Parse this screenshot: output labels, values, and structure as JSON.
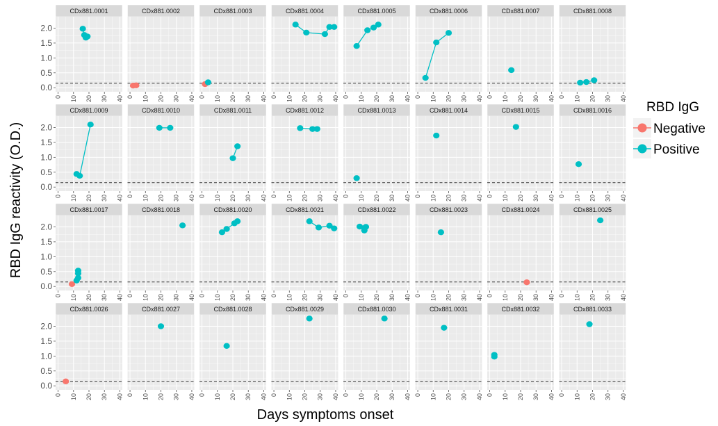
{
  "chart_data": {
    "type": "scatter",
    "facet_layout": "4 rows x 8 columns",
    "xlabel": "Days symptoms onset",
    "ylabel": "RBD IgG reactivity (O.D.)",
    "xlim": [
      0,
      40
    ],
    "ylim": [
      0,
      2.25
    ],
    "x_ticks": [
      0,
      10,
      20,
      30,
      40
    ],
    "y_ticks": [
      0.0,
      0.5,
      1.0,
      1.5,
      2.0
    ],
    "y_tick_labels": [
      "0.0",
      "0.5",
      "1.0",
      "1.5",
      "2.0"
    ],
    "threshold_line": 0.15,
    "grid": true,
    "lines_connect_points": true,
    "legend": {
      "title": "RBD IgG",
      "placement": "right",
      "entries": [
        {
          "label": "Negative",
          "color": "#F8766D"
        },
        {
          "label": "Positive",
          "color": "#00BFC4"
        }
      ]
    },
    "colors": {
      "Negative": "#F8766D",
      "Positive": "#00BFC4",
      "panel_bg": "#EBEBEB",
      "strip_bg": "#D9D9D9",
      "grid": "#FFFFFF",
      "threshold": "#333333"
    },
    "panels": [
      {
        "id": "CDx881.0001",
        "points": [
          [
            16,
            1.98,
            "Positive"
          ],
          [
            17,
            1.77,
            "Positive"
          ],
          [
            18,
            1.68,
            "Positive"
          ],
          [
            19,
            1.72,
            "Positive"
          ]
        ]
      },
      {
        "id": "CDx881.0002",
        "points": [
          [
            2,
            0.07,
            "Negative"
          ],
          [
            4,
            0.08,
            "Negative"
          ]
        ]
      },
      {
        "id": "CDx881.0003",
        "points": [
          [
            2,
            0.12,
            "Negative"
          ],
          [
            4,
            0.18,
            "Positive"
          ]
        ]
      },
      {
        "id": "CDx881.0004",
        "points": [
          [
            14,
            2.12,
            "Positive"
          ],
          [
            21,
            1.85,
            "Positive"
          ],
          [
            33,
            1.8,
            "Positive"
          ],
          [
            36,
            2.04,
            "Positive"
          ],
          [
            39,
            2.04,
            "Positive"
          ]
        ]
      },
      {
        "id": "CDx881.0005",
        "points": [
          [
            7,
            1.4,
            "Positive"
          ],
          [
            14,
            1.93,
            "Positive"
          ],
          [
            18,
            2.02,
            "Positive"
          ],
          [
            21,
            2.12,
            "Positive"
          ]
        ]
      },
      {
        "id": "CDx881.0006",
        "points": [
          [
            5,
            0.33,
            "Positive"
          ],
          [
            12,
            1.52,
            "Positive"
          ],
          [
            20,
            1.84,
            "Positive"
          ]
        ]
      },
      {
        "id": "CDx881.0007",
        "points": [
          [
            14,
            0.59,
            "Positive"
          ]
        ]
      },
      {
        "id": "CDx881.0008",
        "points": [
          [
            12,
            0.17,
            "Positive"
          ],
          [
            16,
            0.19,
            "Positive"
          ],
          [
            21,
            0.25,
            "Positive"
          ]
        ]
      },
      {
        "id": "CDx881.0009",
        "points": [
          [
            12,
            0.44,
            "Positive"
          ],
          [
            14,
            0.38,
            "Positive"
          ],
          [
            21,
            2.1,
            "Positive"
          ]
        ]
      },
      {
        "id": "CDx881.0010",
        "points": [
          [
            19,
            1.99,
            "Positive"
          ],
          [
            26,
            1.99,
            "Positive"
          ]
        ]
      },
      {
        "id": "CDx881.0011",
        "points": [
          [
            20,
            0.97,
            "Positive"
          ],
          [
            23,
            1.37,
            "Positive"
          ]
        ]
      },
      {
        "id": "CDx881.0012",
        "points": [
          [
            17,
            1.98,
            "Positive"
          ],
          [
            25,
            1.95,
            "Positive"
          ],
          [
            28,
            1.95,
            "Positive"
          ]
        ]
      },
      {
        "id": "CDx881.0013",
        "points": [
          [
            7,
            0.3,
            "Positive"
          ]
        ]
      },
      {
        "id": "CDx881.0014",
        "points": [
          [
            12,
            1.73,
            "Positive"
          ]
        ]
      },
      {
        "id": "CDx881.0015",
        "points": [
          [
            17,
            2.02,
            "Positive"
          ]
        ]
      },
      {
        "id": "CDx881.0016",
        "points": [
          [
            11,
            0.77,
            "Positive"
          ]
        ]
      },
      {
        "id": "CDx881.0017",
        "points": [
          [
            9,
            0.08,
            "Negative"
          ],
          [
            12,
            0.2,
            "Positive"
          ],
          [
            13,
            0.29,
            "Positive"
          ],
          [
            13,
            0.44,
            "Positive"
          ],
          [
            13,
            0.53,
            "Positive"
          ]
        ]
      },
      {
        "id": "CDx881.0018",
        "points": [
          [
            34,
            2.05,
            "Positive"
          ]
        ]
      },
      {
        "id": "CDx881.0020",
        "points": [
          [
            13,
            1.82,
            "Positive"
          ],
          [
            16,
            1.93,
            "Positive"
          ],
          [
            21,
            2.12,
            "Positive"
          ],
          [
            23,
            2.19,
            "Positive"
          ]
        ]
      },
      {
        "id": "CDx881.0021",
        "points": [
          [
            23,
            2.19,
            "Positive"
          ],
          [
            29,
            1.98,
            "Positive"
          ],
          [
            36,
            2.04,
            "Positive"
          ],
          [
            39,
            1.95,
            "Positive"
          ]
        ]
      },
      {
        "id": "CDx881.0022",
        "points": [
          [
            9,
            2.01,
            "Positive"
          ],
          [
            12,
            1.88,
            "Positive"
          ],
          [
            12,
            1.96,
            "Positive"
          ],
          [
            13,
            2.0,
            "Positive"
          ]
        ]
      },
      {
        "id": "CDx881.0023",
        "points": [
          [
            15,
            1.82,
            "Positive"
          ]
        ]
      },
      {
        "id": "CDx881.0024",
        "points": [
          [
            24,
            0.14,
            "Negative"
          ]
        ]
      },
      {
        "id": "CDx881.0025",
        "points": [
          [
            25,
            2.22,
            "Positive"
          ]
        ]
      },
      {
        "id": "CDx881.0026",
        "points": [
          [
            5,
            0.15,
            "Negative"
          ]
        ]
      },
      {
        "id": "CDx881.0027",
        "points": [
          [
            20,
            2.0,
            "Positive"
          ]
        ]
      },
      {
        "id": "CDx881.0028",
        "points": [
          [
            16,
            1.34,
            "Positive"
          ]
        ]
      },
      {
        "id": "CDx881.0029",
        "points": [
          [
            23,
            2.26,
            "Positive"
          ]
        ]
      },
      {
        "id": "CDx881.0030",
        "points": [
          [
            25,
            2.26,
            "Positive"
          ]
        ]
      },
      {
        "id": "CDx881.0031",
        "points": [
          [
            17,
            1.95,
            "Positive"
          ]
        ]
      },
      {
        "id": "CDx881.0032",
        "points": [
          [
            3,
            1.04,
            "Positive"
          ],
          [
            3,
            0.98,
            "Positive"
          ]
        ]
      },
      {
        "id": "CDx881.0033",
        "points": [
          [
            18,
            2.07,
            "Positive"
          ]
        ]
      }
    ]
  }
}
